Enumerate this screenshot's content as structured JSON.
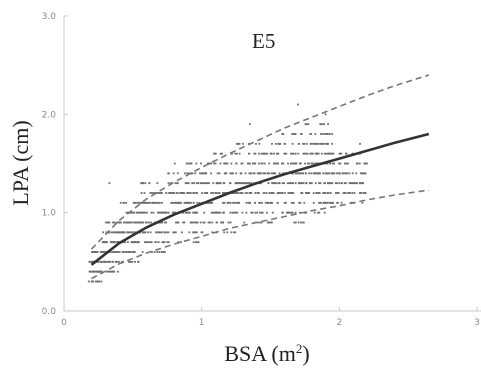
{
  "chart_data": {
    "type": "scatter",
    "title": "E5",
    "xlabel": "BSA (m",
    "xlabel_sup": "2",
    "xlabel_close": ")",
    "ylabel": "LPA (cm)",
    "xlim": [
      0,
      3
    ],
    "ylim": [
      0.0,
      3.0
    ],
    "x_ticks": [
      "0",
      "1",
      "2",
      "3"
    ],
    "y_ticks": [
      "0.0",
      "1.0",
      "2.0",
      "3.0"
    ],
    "grid": false,
    "colors": {
      "points": "#6e6e6e",
      "mean": "#333333",
      "bands": "#777777",
      "axis": "#c8c8c8"
    },
    "series": [
      {
        "kind": "mean-curve",
        "x": [
          0.2,
          0.4,
          0.6,
          0.8,
          1.0,
          1.2,
          1.4,
          1.6,
          1.8,
          2.0,
          2.2,
          2.4,
          2.65
        ],
        "y": [
          0.47,
          0.69,
          0.85,
          0.98,
          1.09,
          1.2,
          1.3,
          1.39,
          1.47,
          1.55,
          1.63,
          1.71,
          1.8
        ]
      },
      {
        "kind": "upper-band",
        "x": [
          0.2,
          0.4,
          0.6,
          0.8,
          1.0,
          1.2,
          1.4,
          1.6,
          1.8,
          2.0,
          2.2,
          2.4,
          2.65
        ],
        "y": [
          0.63,
          0.92,
          1.14,
          1.31,
          1.46,
          1.6,
          1.73,
          1.86,
          1.97,
          2.08,
          2.19,
          2.29,
          2.4
        ]
      },
      {
        "kind": "lower-band",
        "x": [
          0.2,
          0.4,
          0.6,
          0.8,
          1.0,
          1.2,
          1.4,
          1.6,
          1.8,
          2.0,
          2.2,
          2.4,
          2.65
        ],
        "y": [
          0.33,
          0.48,
          0.59,
          0.68,
          0.76,
          0.84,
          0.9,
          0.96,
          1.02,
          1.07,
          1.13,
          1.18,
          1.23
        ]
      }
    ],
    "scatter_bins": [
      {
        "x": [
          0.18,
          0.28
        ],
        "y": [
          0.3,
          0.6
        ]
      },
      {
        "x": [
          0.28,
          0.4
        ],
        "y": [
          0.4,
          0.9
        ]
      },
      {
        "x": [
          0.4,
          0.55
        ],
        "y": [
          0.5,
          1.1
        ]
      },
      {
        "x": [
          0.55,
          0.75
        ],
        "y": [
          0.6,
          1.3
        ]
      },
      {
        "x": [
          0.75,
          1.0
        ],
        "y": [
          0.7,
          1.5
        ]
      },
      {
        "x": [
          1.0,
          1.25
        ],
        "y": [
          0.8,
          1.6
        ]
      },
      {
        "x": [
          1.25,
          1.5
        ],
        "y": [
          0.9,
          1.7
        ]
      },
      {
        "x": [
          1.5,
          1.75
        ],
        "y": [
          0.9,
          1.8
        ]
      },
      {
        "x": [
          1.75,
          1.95
        ],
        "y": [
          1.0,
          1.9
        ]
      },
      {
        "x": [
          1.95,
          2.2
        ],
        "y": [
          1.1,
          1.6
        ]
      }
    ],
    "outliers": [
      {
        "x": 0.33,
        "y": 1.3
      },
      {
        "x": 1.7,
        "y": 2.1
      },
      {
        "x": 1.9,
        "y": 2.0
      },
      {
        "x": 1.35,
        "y": 1.9
      },
      {
        "x": 2.15,
        "y": 1.7
      }
    ]
  }
}
